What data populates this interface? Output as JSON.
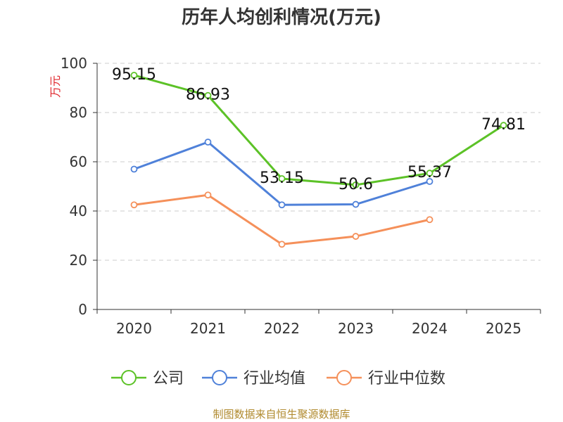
{
  "title": "历年人均创利情况(万元)",
  "source": "制图数据来自恒生聚源数据库",
  "chart_data": {
    "type": "line",
    "title": "历年人均创利情况(万元)",
    "ylabel": "万元",
    "xlabel": "",
    "ylim": [
      0,
      100
    ],
    "yticks": [
      0,
      20,
      40,
      60,
      80,
      100
    ],
    "categories": [
      "2020",
      "2021",
      "2022",
      "2023",
      "2024",
      "2025"
    ],
    "grid": true,
    "legend_position": "bottom",
    "series": [
      {
        "name": "公司",
        "color": "#5cc227",
        "values": [
          95.15,
          86.93,
          53.15,
          50.6,
          55.37,
          74.81
        ],
        "labels": [
          "95.15",
          "86.93",
          "53.15",
          "50.6",
          "55.37",
          "74.81"
        ]
      },
      {
        "name": "行业均值",
        "color": "#4f81d9",
        "values": [
          57,
          68,
          42.5,
          42.7,
          52,
          null
        ]
      },
      {
        "name": "行业中位数",
        "color": "#f5905a",
        "values": [
          42.5,
          46.5,
          26.5,
          29.7,
          36.5,
          null
        ]
      }
    ]
  }
}
